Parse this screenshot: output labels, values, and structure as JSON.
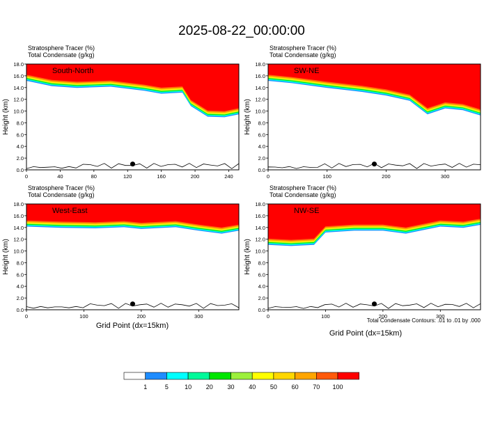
{
  "title": "2025-08-22_00:00:00",
  "panel_header": {
    "line1": "Stratosphere Tracer   (%)",
    "line2": "Total Condensate   (g/kg)"
  },
  "y_axis_label": "Height (km)",
  "x_axis_label": "Grid Point (dx=15km)",
  "contour_note": "Total Condensate Contours: .01 to .01 by .000",
  "colorbar": {
    "colors": [
      "#ffffff",
      "#1e8cff",
      "#00ffff",
      "#00fa9a",
      "#00e600",
      "#9cf03c",
      "#ffff00",
      "#ffd700",
      "#ffa500",
      "#ff5a0a",
      "#ff0000"
    ],
    "labels": [
      "1",
      "5",
      "10",
      "20",
      "30",
      "40",
      "50",
      "60",
      "70",
      "100"
    ]
  },
  "chart_data": [
    {
      "type": "heatmap",
      "name": "South-North",
      "xticks": [
        0,
        40,
        80,
        120,
        160,
        200,
        240
      ],
      "xlim": [
        0,
        252
      ],
      "yticks": [
        "0.0",
        "2.0",
        "4.0",
        "6.0",
        "8.0",
        "10.0",
        "12.0",
        "14.0",
        "16.0",
        "18.0"
      ],
      "ylim": [
        0,
        18
      ],
      "tropopause_km": [
        [
          0,
          15.3
        ],
        [
          10,
          15.0
        ],
        [
          30,
          14.4
        ],
        [
          60,
          14.1
        ],
        [
          100,
          14.3
        ],
        [
          140,
          13.6
        ],
        [
          160,
          13.1
        ],
        [
          185,
          13.3
        ],
        [
          195,
          11.0
        ],
        [
          215,
          9.2
        ],
        [
          235,
          9.1
        ],
        [
          252,
          9.6
        ]
      ]
    },
    {
      "type": "heatmap",
      "name": "SW-NE",
      "xticks": [
        0,
        100,
        200,
        300
      ],
      "xlim": [
        0,
        360
      ],
      "yticks": [
        "0.0",
        "2.0",
        "4.0",
        "6.0",
        "8.0",
        "10.0",
        "12.0",
        "14.0",
        "16.0",
        "18.0"
      ],
      "ylim": [
        0,
        18
      ],
      "tropopause_km": [
        [
          0,
          15.3
        ],
        [
          40,
          14.9
        ],
        [
          100,
          14.1
        ],
        [
          160,
          13.4
        ],
        [
          200,
          12.8
        ],
        [
          240,
          11.9
        ],
        [
          270,
          9.6
        ],
        [
          300,
          10.6
        ],
        [
          330,
          10.3
        ],
        [
          360,
          9.4
        ]
      ]
    },
    {
      "type": "heatmap",
      "name": "West-East",
      "xticks": [
        0,
        100,
        200,
        300
      ],
      "xlim": [
        0,
        370
      ],
      "yticks": [
        "0.0",
        "2.0",
        "4.0",
        "6.0",
        "8.0",
        "10.0",
        "12.0",
        "14.0",
        "16.0",
        "18.0"
      ],
      "ylim": [
        0,
        18
      ],
      "tropopause_km": [
        [
          0,
          14.3
        ],
        [
          60,
          14.1
        ],
        [
          120,
          14.0
        ],
        [
          170,
          14.2
        ],
        [
          200,
          13.9
        ],
        [
          260,
          14.2
        ],
        [
          300,
          13.6
        ],
        [
          340,
          13.1
        ],
        [
          370,
          13.6
        ]
      ]
    },
    {
      "type": "heatmap",
      "name": "NW-SE",
      "xticks": [
        0,
        100,
        200,
        300
      ],
      "xlim": [
        0,
        370
      ],
      "yticks": [
        "0.0",
        "2.0",
        "4.0",
        "6.0",
        "8.0",
        "10.0",
        "12.0",
        "14.0",
        "16.0",
        "18.0"
      ],
      "ylim": [
        0,
        18
      ],
      "tropopause_km": [
        [
          0,
          11.2
        ],
        [
          40,
          11.0
        ],
        [
          80,
          11.2
        ],
        [
          100,
          13.3
        ],
        [
          150,
          13.6
        ],
        [
          200,
          13.6
        ],
        [
          240,
          13.1
        ],
        [
          300,
          14.3
        ],
        [
          340,
          14.1
        ],
        [
          370,
          14.6
        ]
      ]
    }
  ]
}
